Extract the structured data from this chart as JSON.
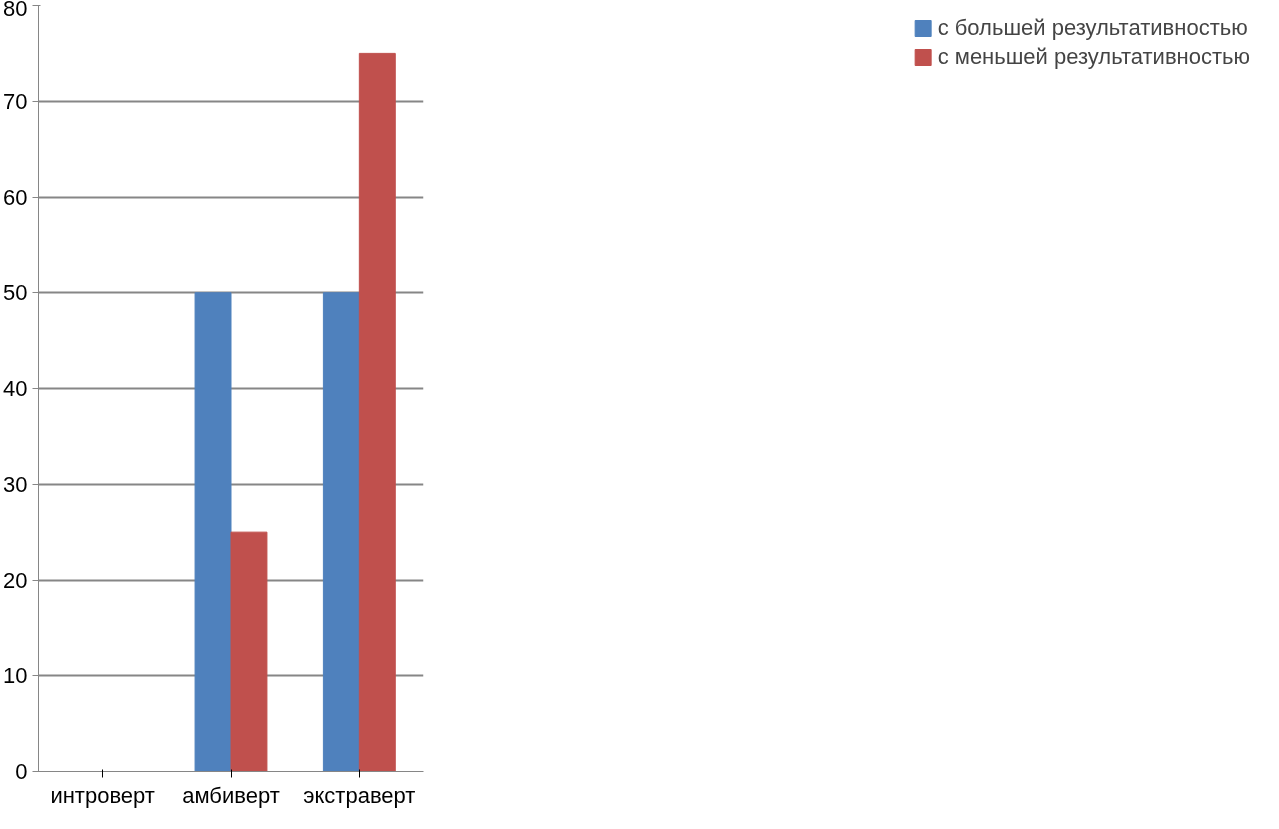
{
  "chart_data": {
    "type": "bar",
    "categories": [
      "интроверт",
      "амбиверт",
      "экстраверт"
    ],
    "series": [
      {
        "name": "с большей результативностью",
        "color": "#4f81bd",
        "values": [
          0,
          50,
          50
        ]
      },
      {
        "name": "с меньшей результативностью",
        "color": "#c0504d",
        "values": [
          0,
          25,
          75
        ]
      }
    ],
    "ylim": [
      0,
      80
    ],
    "yticks": [
      0,
      10,
      20,
      30,
      40,
      50,
      60,
      70,
      80
    ],
    "grid": "y",
    "legend": "right"
  }
}
